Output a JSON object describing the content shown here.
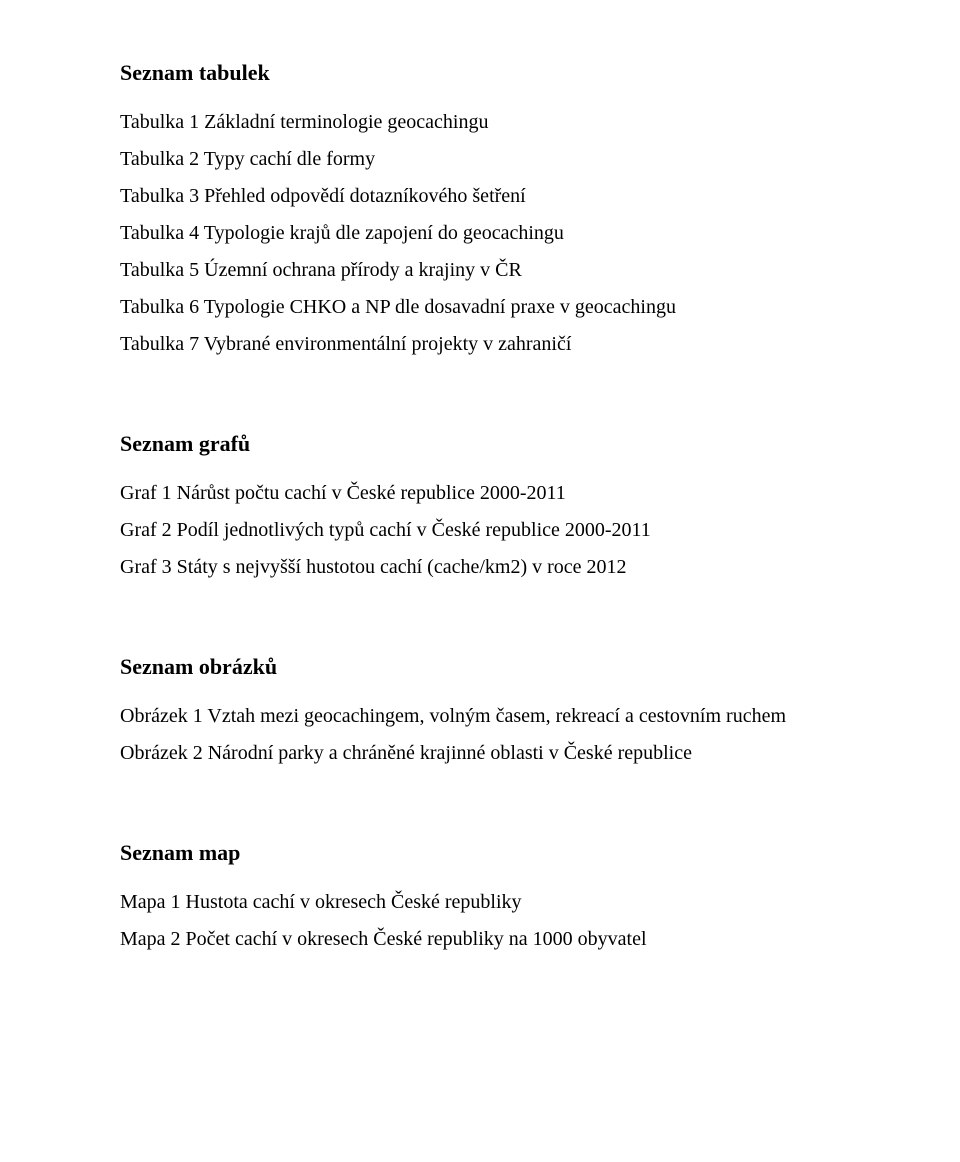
{
  "sections": [
    {
      "heading": "Seznam tabulek",
      "items": [
        "Tabulka 1 Základní terminologie geocachingu",
        "Tabulka 2 Typy cachí dle formy",
        "Tabulka 3 Přehled odpovědí dotazníkového šetření",
        "Tabulka 4 Typologie krajů dle zapojení do geocachingu",
        "Tabulka 5 Územní ochrana přírody a krajiny v ČR",
        "Tabulka 6 Typologie CHKO a NP dle dosavadní praxe v geocachingu",
        "Tabulka 7 Vybrané environmentální projekty v zahraničí"
      ]
    },
    {
      "heading": "Seznam grafů",
      "items": [
        "Graf 1 Nárůst počtu cachí v České republice 2000-2011",
        "Graf 2 Podíl jednotlivých typů cachí v České republice 2000-2011",
        "Graf 3 Státy s nejvyšší hustotou cachí (cache/km2) v roce 2012"
      ]
    },
    {
      "heading": "Seznam obrázků",
      "items": [
        "Obrázek 1 Vztah mezi geocachingem, volným časem, rekreací a cestovním ruchem",
        "Obrázek 2 Národní parky a chráněné krajinné oblasti v České republice"
      ]
    },
    {
      "heading": "Seznam map",
      "items": [
        "Mapa 1 Hustota cachí v okresech České republiky",
        "Mapa 2 Počet cachí v okresech České republiky na 1000 obyvatel"
      ]
    }
  ]
}
